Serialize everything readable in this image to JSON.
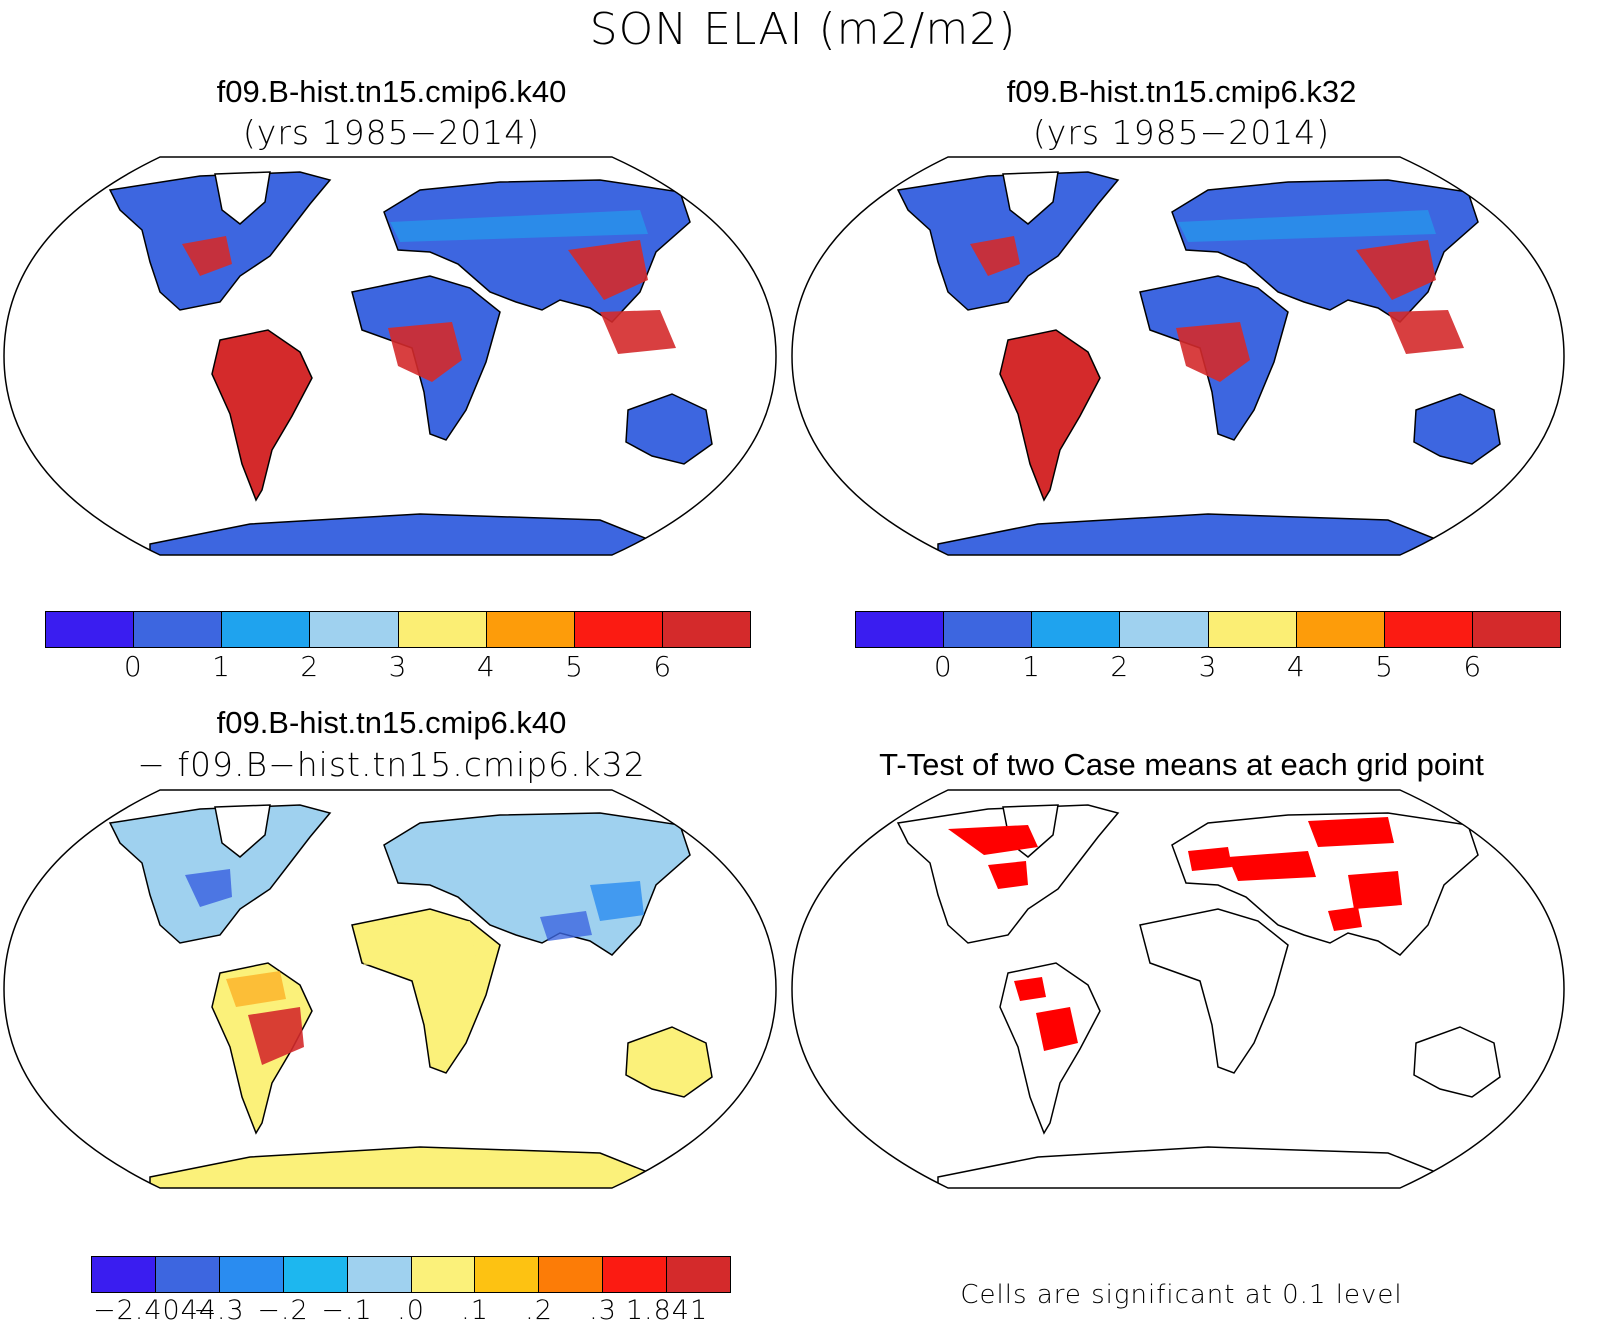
{
  "figure": {
    "title": "SON ELAI (m2/m2)"
  },
  "panels": [
    {
      "id": "case1",
      "title": "f09.B-hist.tn15.cmip6.k40",
      "subtitle": "(yrs 1985−2014)",
      "type": "map",
      "projection": "Robinson"
    },
    {
      "id": "case2",
      "title": "f09.B-hist.tn15.cmip6.k32",
      "subtitle": "(yrs 1985−2014)",
      "type": "map",
      "projection": "Robinson"
    },
    {
      "id": "diff",
      "title": "f09.B-hist.tn15.cmip6.k40",
      "subtitle": "− f09.B−hist.tn15.cmip6.k32",
      "type": "map",
      "projection": "Robinson"
    },
    {
      "id": "ttest",
      "title": "T-Test of two Case means at each grid point",
      "footnote": "Cells are significant at 0.1 level",
      "type": "map",
      "projection": "Robinson",
      "significant_color": "#ff0000"
    }
  ],
  "colorbars": {
    "abs": {
      "colors": [
        "#3a1df0",
        "#3d66e0",
        "#1fa3ee",
        "#9fd1ef",
        "#fbee74",
        "#fd9c0a",
        "#fb1b12",
        "#d42a2b"
      ],
      "labels": [
        "0",
        "1",
        "2",
        "3",
        "4",
        "5",
        "6"
      ]
    },
    "diff": {
      "colors": [
        "#3a1df0",
        "#3d66e0",
        "#2a8cf0",
        "#1db7ef",
        "#9fd1ef",
        "#fbf17a",
        "#fdc212",
        "#fc7c07",
        "#fb1b12",
        "#d42a2b"
      ],
      "labels": [
        "−2.4044",
        "−.3",
        "−.2",
        "−.1",
        ".0",
        ".1",
        ".2",
        ".3",
        "1.841"
      ]
    }
  }
}
